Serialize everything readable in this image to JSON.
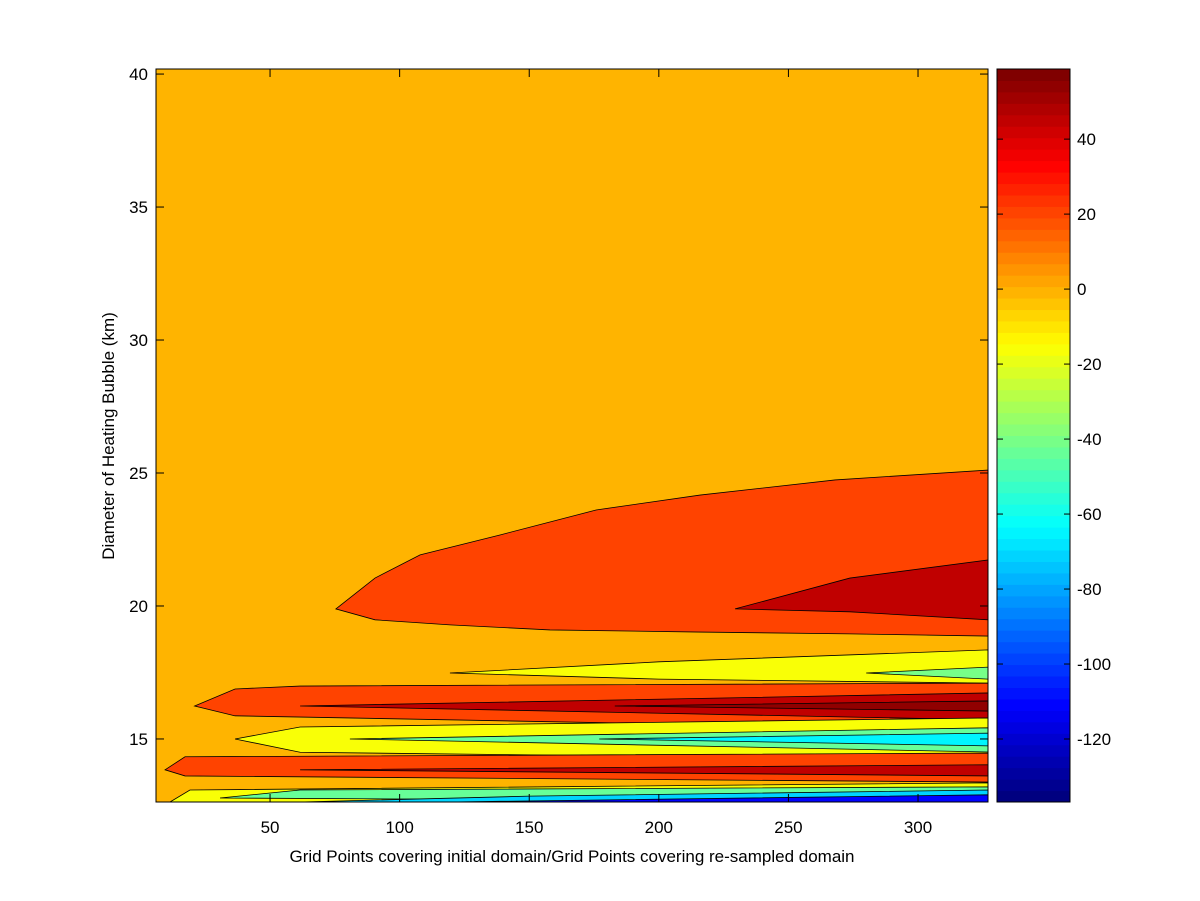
{
  "chart_data": {
    "type": "contourf",
    "xlabel": "Grid Points covering initial domain/Grid Points covering re-sampled domain",
    "ylabel": "Diameter of Heating Bubble (km)",
    "xlim": [
      6,
      327
    ],
    "ylim": [
      12.63,
      40.19
    ],
    "xticks": [
      50,
      100,
      150,
      200,
      250,
      300
    ],
    "yticks": [
      15,
      20,
      25,
      30,
      35,
      40
    ],
    "clim": [
      -136.8,
      58.7
    ],
    "cticks": [
      -120,
      -100,
      -80,
      -60,
      -40,
      -20,
      0,
      20,
      40
    ],
    "colormap": "jet",
    "background_level": 0,
    "regions": [
      {
        "level": 22,
        "x": [
          75.4,
          90.5,
          107.9,
          138.7,
          175.8,
          215.9,
          268,
          327,
          327,
          273.7,
          215.9,
          158,
          119.4,
          90.5
        ],
        "y": [
          19.89,
          21.05,
          21.92,
          22.67,
          23.61,
          24.17,
          24.74,
          25.11,
          18.87,
          18.95,
          19.02,
          19.1,
          19.29,
          19.48
        ]
      },
      {
        "level": 44,
        "x": [
          229.4,
          273.7,
          327,
          327,
          273.7
        ],
        "y": [
          19.89,
          21.05,
          21.73,
          19.48,
          19.78
        ]
      },
      {
        "level": -15,
        "x": [
          119.4,
          200,
          327,
          327,
          200
        ],
        "y": [
          17.48,
          17.9,
          18.35,
          17.1,
          17.25
        ]
      },
      {
        "level": -40,
        "x": [
          280,
          327,
          327
        ],
        "y": [
          17.48,
          17.7,
          17.25
        ]
      },
      {
        "level": 22,
        "x": [
          20.9,
          36.5,
          61.6,
          327,
          327,
          36.5
        ],
        "y": [
          16.24,
          16.88,
          16.99,
          17.1,
          15.34,
          15.87
        ]
      },
      {
        "level": 44,
        "x": [
          61.6,
          327,
          327
        ],
        "y": [
          16.24,
          16.73,
          15.72
        ]
      },
      {
        "level": 53,
        "x": [
          183,
          327,
          327
        ],
        "y": [
          16.24,
          16.43,
          16.05
        ]
      },
      {
        "level": -15,
        "x": [
          36.5,
          61.6,
          327,
          327,
          61.6
        ],
        "y": [
          15.0,
          15.45,
          15.79,
          14.21,
          14.5
        ]
      },
      {
        "level": -45,
        "x": [
          80.8,
          327,
          327
        ],
        "y": [
          15.0,
          15.42,
          14.51
        ]
      },
      {
        "level": -65,
        "x": [
          177,
          327,
          327
        ],
        "y": [
          15.0,
          15.22,
          14.74
        ]
      },
      {
        "level": 22,
        "x": [
          9.5,
          17.2,
          327,
          327,
          17.2
        ],
        "y": [
          13.84,
          14.33,
          14.47,
          13.38,
          13.61
        ]
      },
      {
        "level": 44,
        "x": [
          61.6,
          327,
          327
        ],
        "y": [
          13.84,
          14.03,
          13.61
        ]
      },
      {
        "level": -15,
        "x": [
          11.4,
          19.1,
          327,
          327
        ],
        "y": [
          12.63,
          13.08,
          13.35,
          12.63
        ]
      },
      {
        "level": -45,
        "x": [
          30.7,
          61.6,
          327,
          327
        ],
        "y": [
          12.78,
          13.08,
          13.2,
          12.63
        ]
      },
      {
        "level": -70,
        "x": [
          61.6,
          150,
          327,
          327
        ],
        "y": [
          12.63,
          12.85,
          13.08,
          12.63
        ]
      },
      {
        "level": -110,
        "x": [
          119.4,
          327,
          327
        ],
        "y": [
          12.63,
          12.9,
          12.63
        ]
      }
    ]
  }
}
